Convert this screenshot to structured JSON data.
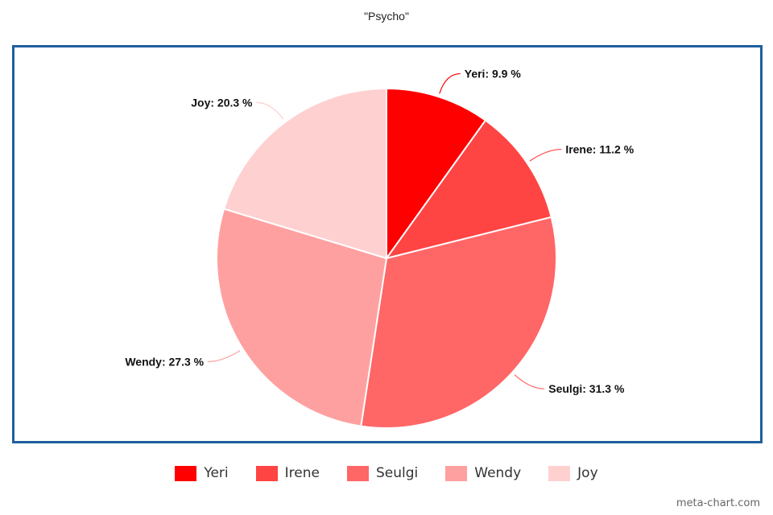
{
  "chart_data": {
    "type": "pie",
    "title": "\"Psycho\"",
    "slices": [
      {
        "name": "Yeri",
        "value": 9.9,
        "label": "Yeri: 9.9 %",
        "color": "#ff0000"
      },
      {
        "name": "Irene",
        "value": 11.2,
        "label": "Irene: 11.2 %",
        "color": "#ff4444"
      },
      {
        "name": "Seulgi",
        "value": 31.3,
        "label": "Seulgi: 31.3 %",
        "color": "#ff6666"
      },
      {
        "name": "Wendy",
        "value": 27.3,
        "label": "Wendy: 27.3 %",
        "color": "#ffa0a0"
      },
      {
        "name": "Joy",
        "value": 20.3,
        "label": "Joy: 20.3 %",
        "color": "#ffd0d0"
      }
    ],
    "legend_position": "bottom",
    "frame_color": "#1f5f9e"
  },
  "watermark": "meta-chart.com"
}
